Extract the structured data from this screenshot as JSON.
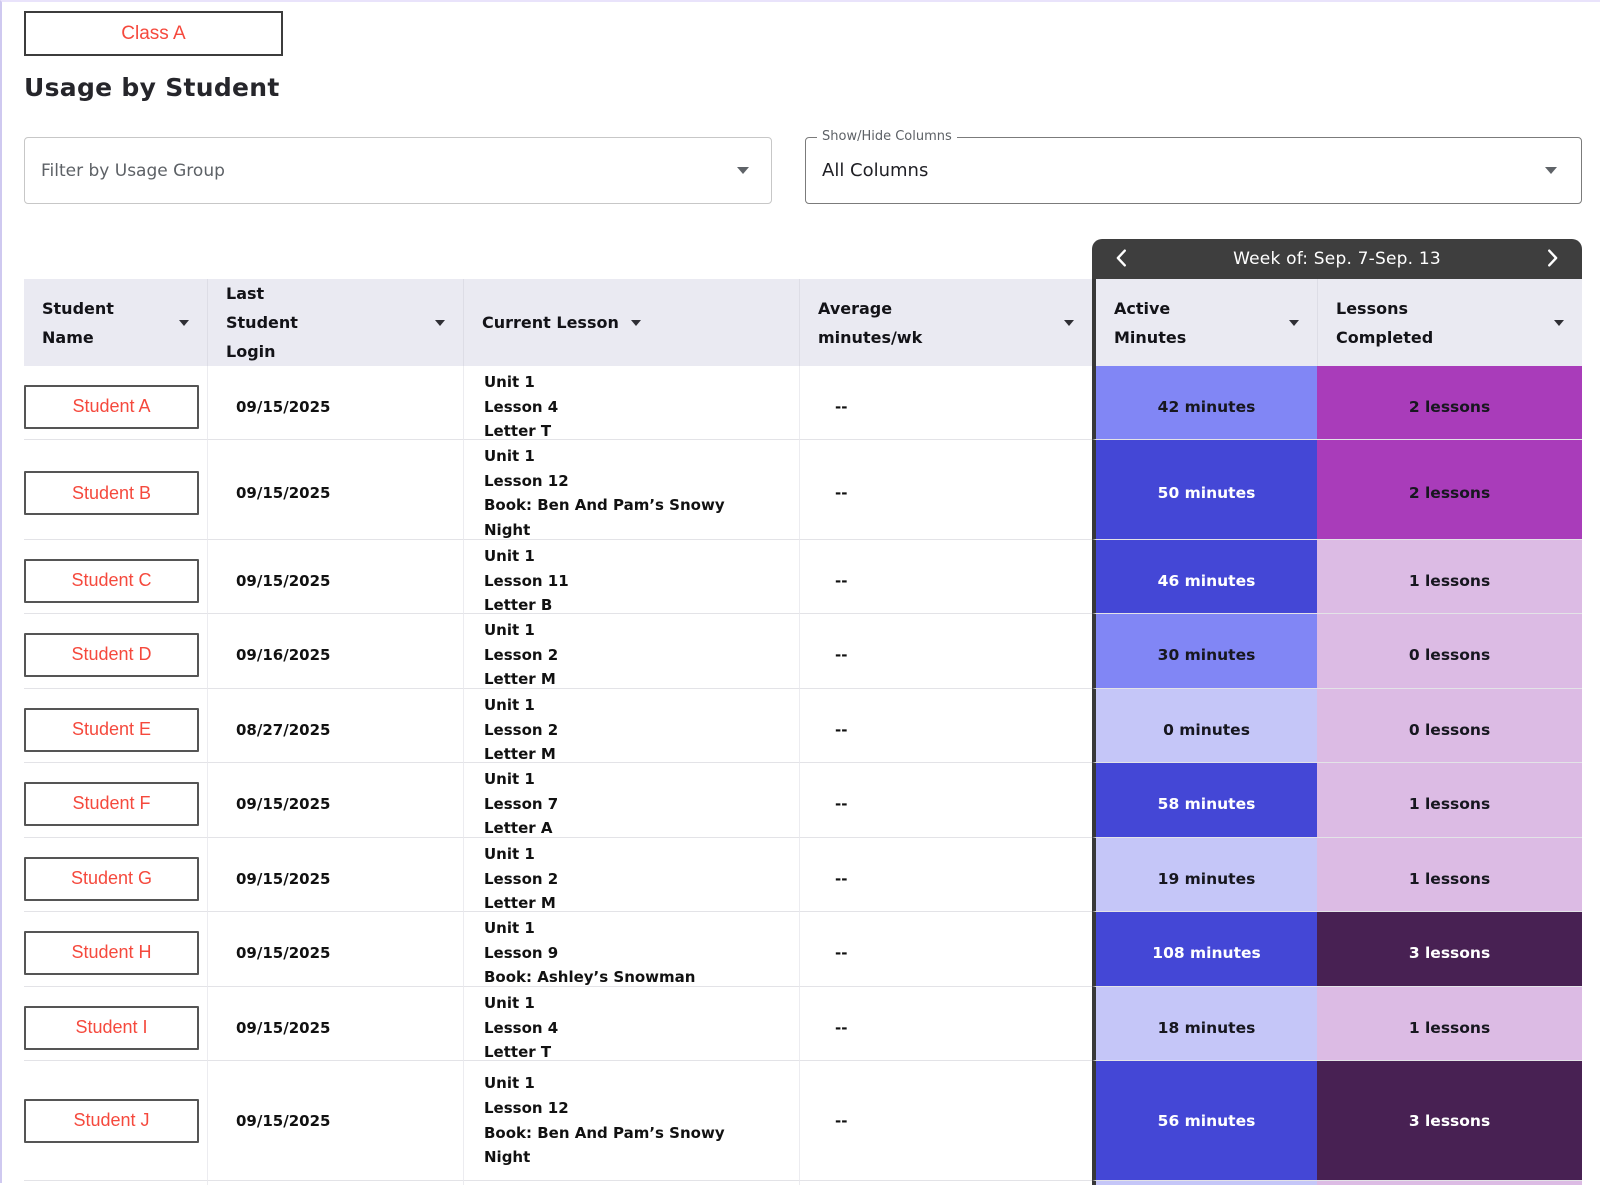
{
  "page": {
    "class_button_label": "Class A",
    "title": "Usage by Student"
  },
  "filters": {
    "usage_group_placeholder": "Filter by Usage Group",
    "show_hide_label": "Show/Hide Columns",
    "show_hide_value": "All Columns"
  },
  "week_nav": {
    "label": "Week of: Sep. 7-Sep. 13",
    "prev_icon": "chevron-left",
    "next_icon": "chevron-right"
  },
  "table": {
    "columns": [
      {
        "id": "student-name",
        "label": "Student Name"
      },
      {
        "id": "last-student-login",
        "label": "Last Student Login"
      },
      {
        "id": "current-lesson",
        "label": "Current Lesson"
      },
      {
        "id": "average-minutes",
        "label": "Average minutes/wk"
      },
      {
        "id": "active-minutes",
        "label": "Active Minutes"
      },
      {
        "id": "lessons-completed",
        "label": "Lessons Completed"
      }
    ],
    "rows": [
      {
        "name": "Student A",
        "login": "09/15/2025",
        "lesson_lines": [
          "Unit 1",
          "Lesson 4",
          "Letter T"
        ],
        "avg": "--",
        "active": "42 minutes",
        "active_level": "mid",
        "lessons": "2 lessons",
        "lessons_level": "mid"
      },
      {
        "name": "Student B",
        "login": "09/15/2025",
        "lesson_lines": [
          "Unit 1",
          "Lesson 12",
          "Book: Ben And Pam’s Snowy",
          "Night"
        ],
        "avg": "--",
        "active": "50 minutes",
        "active_level": "high",
        "lessons": "2 lessons",
        "lessons_level": "mid"
      },
      {
        "name": "Student C",
        "login": "09/15/2025",
        "lesson_lines": [
          "Unit 1",
          "Lesson 11",
          "Letter B"
        ],
        "avg": "--",
        "active": "46 minutes",
        "active_level": "high",
        "lessons": "1 lessons",
        "lessons_level": "low"
      },
      {
        "name": "Student D",
        "login": "09/16/2025",
        "lesson_lines": [
          "Unit 1",
          "Lesson 2",
          "Letter M"
        ],
        "avg": "--",
        "active": "30 minutes",
        "active_level": "mid",
        "lessons": "0 lessons",
        "lessons_level": "low"
      },
      {
        "name": "Student E",
        "login": "08/27/2025",
        "lesson_lines": [
          "Unit 1",
          "Lesson 2",
          "Letter M"
        ],
        "avg": "--",
        "active": "0 minutes",
        "active_level": "low",
        "lessons": "0 lessons",
        "lessons_level": "low"
      },
      {
        "name": "Student F",
        "login": "09/15/2025",
        "lesson_lines": [
          "Unit 1",
          "Lesson 7",
          "Letter A"
        ],
        "avg": "--",
        "active": "58 minutes",
        "active_level": "high",
        "lessons": "1 lessons",
        "lessons_level": "low"
      },
      {
        "name": "Student G",
        "login": "09/15/2025",
        "lesson_lines": [
          "Unit 1",
          "Lesson 2",
          "Letter M"
        ],
        "avg": "--",
        "active": "19 minutes",
        "active_level": "low",
        "lessons": "1 lessons",
        "lessons_level": "low"
      },
      {
        "name": "Student H",
        "login": "09/15/2025",
        "lesson_lines": [
          "Unit 1",
          "Lesson 9",
          "Book: Ashley’s Snowman"
        ],
        "avg": "--",
        "active": "108 minutes",
        "active_level": "high",
        "lessons": "3 lessons",
        "lessons_level": "high"
      },
      {
        "name": "Student I",
        "login": "09/15/2025",
        "lesson_lines": [
          "Unit 1",
          "Lesson 4",
          "Letter T"
        ],
        "avg": "--",
        "active": "18 minutes",
        "active_level": "low",
        "lessons": "1 lessons",
        "lessons_level": "low"
      },
      {
        "name": "Student J",
        "login": "09/15/2025",
        "lesson_lines": [
          "Unit 1",
          "Lesson 12",
          "Book: Ben And Pam’s Snowy",
          "Night"
        ],
        "avg": "--",
        "active": "56 minutes",
        "active_level": "high",
        "lessons": "3 lessons",
        "lessons_level": "high"
      }
    ]
  },
  "colors": {
    "accent_red": "#f5493d",
    "week_header_bg": "#3e3e3e",
    "week_panel_border": "#383838",
    "header_bg": "#eaeaf2",
    "active_low": "#c5c6f8",
    "active_mid": "#8186f5",
    "active_high": "#4447d6",
    "lessons_low": "#dcbbe4",
    "lessons_mid": "#a93cba",
    "lessons_high": "#482153"
  }
}
